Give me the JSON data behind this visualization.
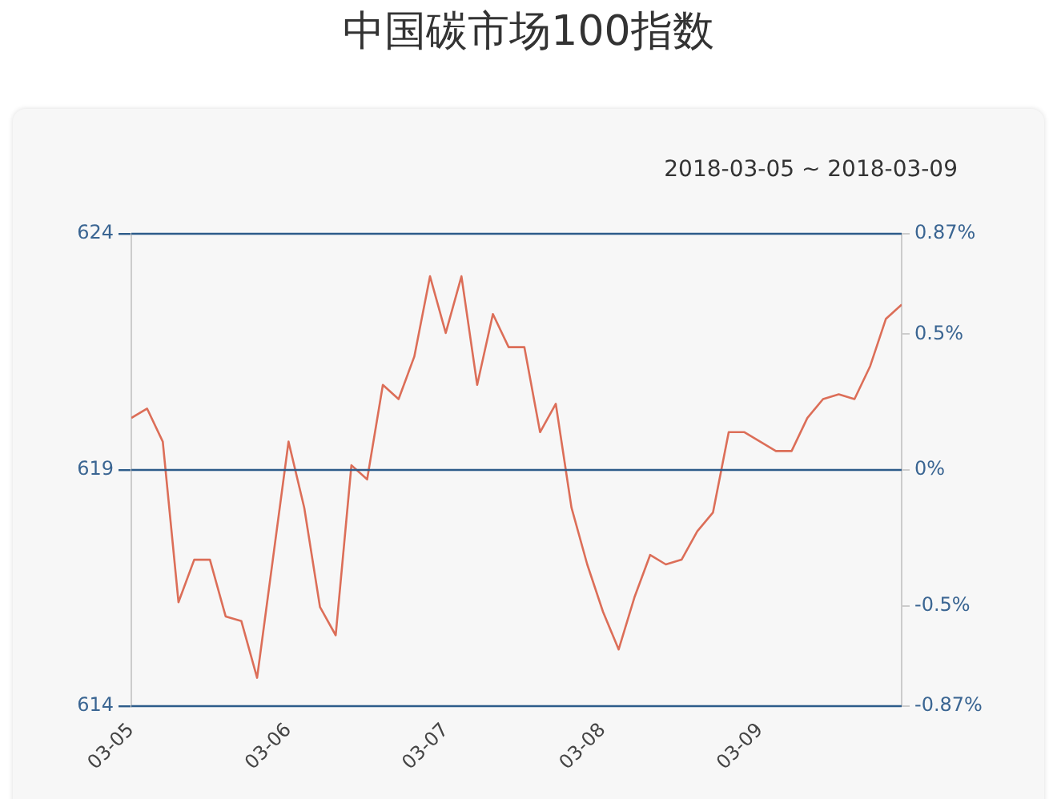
{
  "chart_data": {
    "type": "line",
    "title": "中国碳市场100指数",
    "subtitle": "2018-03-05 ~ 2018-03-09",
    "x": [
      "2018-03-05T00:00",
      "2018-03-05T02:24",
      "2018-03-05T04:48",
      "2018-03-05T07:12",
      "2018-03-05T09:36",
      "2018-03-05T12:00",
      "2018-03-05T14:24",
      "2018-03-05T16:48",
      "2018-03-05T19:12",
      "2018-03-05T21:36",
      "2018-03-06T00:00",
      "2018-03-06T02:24",
      "2018-03-06T04:48",
      "2018-03-06T07:12",
      "2018-03-06T09:36",
      "2018-03-06T12:00",
      "2018-03-06T14:24",
      "2018-03-06T16:48",
      "2018-03-06T19:12",
      "2018-03-06T21:36",
      "2018-03-07T00:00",
      "2018-03-07T02:24",
      "2018-03-07T04:48",
      "2018-03-07T07:12",
      "2018-03-07T09:36",
      "2018-03-07T12:00",
      "2018-03-07T14:24",
      "2018-03-07T16:48",
      "2018-03-07T19:12",
      "2018-03-07T21:36",
      "2018-03-08T00:00",
      "2018-03-08T02:24",
      "2018-03-08T04:48",
      "2018-03-08T07:12",
      "2018-03-08T09:36",
      "2018-03-08T12:00",
      "2018-03-08T14:24",
      "2018-03-08T16:48",
      "2018-03-08T19:12",
      "2018-03-08T21:36",
      "2018-03-09T00:00",
      "2018-03-09T02:24",
      "2018-03-09T04:48",
      "2018-03-09T07:12",
      "2018-03-09T09:36",
      "2018-03-09T12:00",
      "2018-03-09T14:24",
      "2018-03-09T16:48",
      "2018-03-09T19:12",
      "2018-03-09T21:36"
    ],
    "series": [
      {
        "color": "#dc6e58",
        "values": [
          620.1,
          620.3,
          619.6,
          616.2,
          617.1,
          617.1,
          615.9,
          615.8,
          614.6,
          617.1,
          619.6,
          618.2,
          616.1,
          615.5,
          619.1,
          618.8,
          620.8,
          620.5,
          621.4,
          623.1,
          621.9,
          623.1,
          620.8,
          622.3,
          621.6,
          621.6,
          619.8,
          620.4,
          618.2,
          617.0,
          616.0,
          615.2,
          616.3,
          617.2,
          617.0,
          617.1,
          617.7,
          618.1,
          619.8,
          619.8,
          619.6,
          619.4,
          619.4,
          620.1,
          620.5,
          620.6,
          620.5,
          621.2,
          622.2,
          622.5
        ]
      }
    ],
    "xlim": [
      "2018-03-05T00:00",
      "2018-03-09T21:36"
    ],
    "xticks": [
      {
        "value": "2018-03-05",
        "label": "03-05"
      },
      {
        "value": "2018-03-06",
        "label": "03-06"
      },
      {
        "value": "2018-03-07",
        "label": "03-07"
      },
      {
        "value": "2018-03-08",
        "label": "03-08"
      },
      {
        "value": "2018-03-09",
        "label": "03-09"
      }
    ],
    "ylim": [
      614,
      624
    ],
    "yticks": [
      614,
      619,
      624
    ],
    "y2lim": [
      -0.87,
      0.87
    ],
    "y2ticks": [
      {
        "value": -0.87,
        "label": "-0.87%"
      },
      {
        "value": -0.5,
        "label": "-0.5%"
      },
      {
        "value": 0,
        "label": "0%"
      },
      {
        "value": 0.5,
        "label": "0.5%"
      },
      {
        "value": 0.87,
        "label": "0.87%"
      }
    ],
    "ref_lines": [
      {
        "axis": "y2",
        "value": 0,
        "color": "#2d5c8a"
      }
    ],
    "legend": false,
    "marker": "none",
    "line_style": "solid"
  }
}
